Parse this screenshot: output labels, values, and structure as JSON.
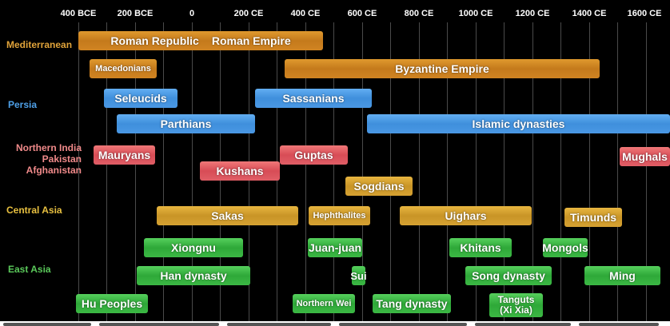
{
  "axis": {
    "ticks": [
      "400 BCE",
      "200 BCE",
      "0",
      "200 CE",
      "400 CE",
      "600 CE",
      "800 CE",
      "1000 CE",
      "1200 CE",
      "1400 CE",
      "1600 CE"
    ]
  },
  "regions": {
    "mediterranean": "Mediterranean",
    "persia": "Persia",
    "northern_india": [
      "Northern India",
      "Pakistan",
      "Afghanistan"
    ],
    "central_asia": "Central Asia",
    "east_asia": "East Asia"
  },
  "colors": {
    "mediterranean": "#e0a33a",
    "persia": "#4ea0e8",
    "northern_india": "#f08a8a",
    "central_asia": "#e8c040",
    "east_asia": "#5ac85a"
  },
  "bars": {
    "roman_republic": "Roman Republic",
    "roman_empire": "Roman Empire",
    "macedonians": "Macedonians",
    "byzantine_empire": "Byzantine Empire",
    "seleucids": "Seleucids",
    "sassanians": "Sassanians",
    "parthians": "Parthians",
    "islamic_dynasties": "Islamic dynasties",
    "mauryans": "Mauryans",
    "guptas": "Guptas",
    "mughals": "Mughals",
    "kushans": "Kushans",
    "sogdians": "Sogdians",
    "sakas": "Sakas",
    "hephthalites": "Hephthalites",
    "uighars": "Uighars",
    "timunds": "Timunds",
    "xiongnu": "Xiongnu",
    "juan_juan": "Juan-juan",
    "khitans": "Khitans",
    "mongols": "Mongols",
    "han_dynasty": "Han dynasty",
    "sui": "Sui",
    "song_dynasty": "Song dynasty",
    "ming": "Ming",
    "hu_peoples": "Hu Peoples",
    "northern_wei": "Northern Wei",
    "tang_dynasty": "Tang dynasty",
    "tanguts": [
      "Tanguts",
      "(Xi Xia)"
    ]
  }
}
